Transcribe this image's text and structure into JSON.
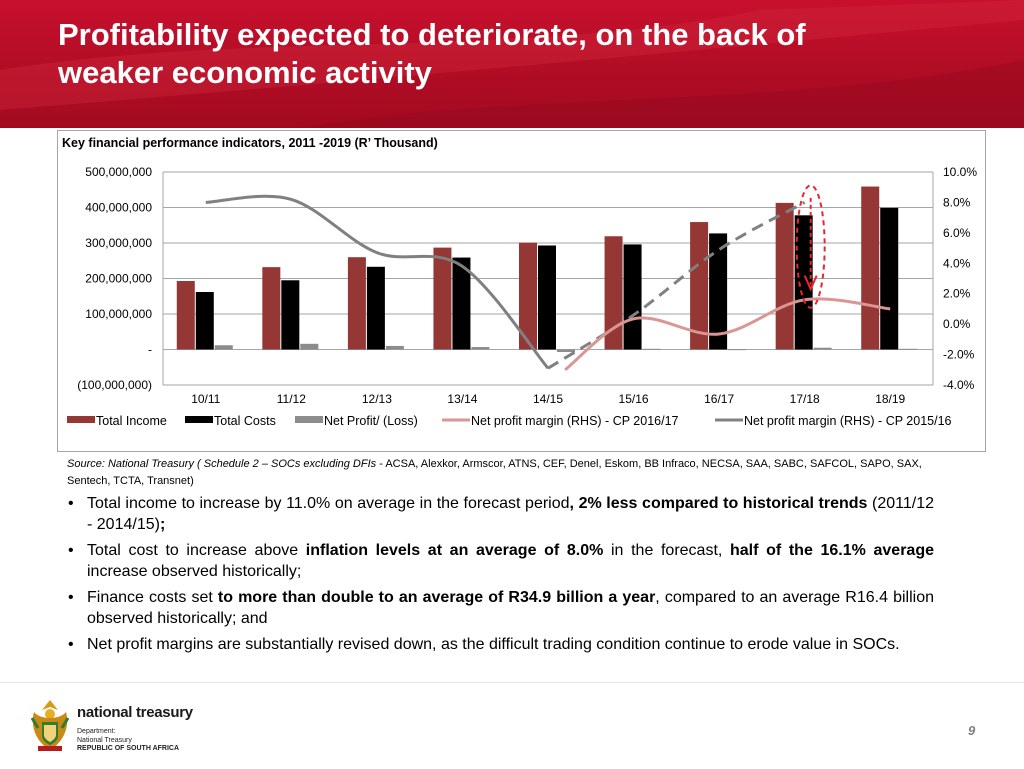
{
  "header": {
    "title_line1": "Profitability expected to deteriorate, on the back of",
    "title_line2": "weaker economic activity"
  },
  "colors": {
    "brand_red": "#c8102e",
    "total_income": "#953735",
    "total_costs": "#000000",
    "net_profit": "#8c8c8c",
    "cp_2016_17": "#d99694",
    "cp_2015_16": "#808080",
    "annotation": "#e8262d"
  },
  "chart_data": {
    "type": "bar",
    "title": "Key financial performance indicators, 2011 -2019 (R’ Thousand)",
    "categories": [
      "10/11",
      "11/12",
      "12/13",
      "13/14",
      "14/15",
      "15/16",
      "16/17",
      "17/18",
      "18/19"
    ],
    "left_axis": {
      "ylim": [
        -100000000,
        500000000
      ],
      "ticks": [
        500000000,
        400000000,
        300000000,
        200000000,
        100000000,
        0,
        -100000000
      ],
      "tick_labels": [
        "500,000,000",
        "400,000,000",
        "300,000,000",
        "200,000,000",
        "100,000,000",
        "-",
        "(100,000,000)"
      ]
    },
    "right_axis": {
      "ylim": [
        -4.0,
        10.0
      ],
      "ticks": [
        10,
        8,
        6,
        4,
        2,
        0,
        -2,
        -4
      ],
      "tick_labels": [
        "10.0%",
        "8.0%",
        "6.0%",
        "4.0%",
        "2.0%",
        "0.0%",
        "-2.0%",
        "-4.0%"
      ]
    },
    "series": [
      {
        "name": "Total Income",
        "type": "bar",
        "axis": "left",
        "values": [
          193000000,
          232000000,
          260000000,
          287000000,
          301000000,
          319000000,
          359000000,
          413000000,
          459000000
        ]
      },
      {
        "name": "Total Costs",
        "type": "bar",
        "axis": "left",
        "values": [
          162000000,
          195000000,
          233000000,
          259000000,
          293000000,
          296000000,
          327000000,
          378000000,
          399000000
        ]
      },
      {
        "name": "Net Profit/ (Loss)",
        "type": "bar",
        "axis": "left",
        "values": [
          12000000,
          16000000,
          10000000,
          7000000,
          -7000000,
          2000000,
          1000000,
          5000000,
          2000000
        ]
      },
      {
        "name": "Net profit margin (RHS) - CP 2016/17",
        "type": "line",
        "axis": "right",
        "x": [
          5.2,
          6,
          7,
          8,
          9
        ],
        "values": [
          -3.0,
          0.35,
          -0.65,
          1.6,
          1.0
        ]
      },
      {
        "name": "Net profit margin (RHS) - CP 2015/16",
        "type": "line",
        "axis": "right",
        "x": [
          1,
          2,
          3,
          4,
          5,
          6,
          7,
          8
        ],
        "values": [
          8.0,
          8.2,
          4.7,
          3.8,
          -2.9,
          0.6,
          4.9,
          8.0
        ]
      }
    ],
    "legend_position": "bottom"
  },
  "source": {
    "lead": "Source: National Treasury ( Schedule 2 – SOCs excluding DFIs",
    "rest": "- ACSA, Alexkor, Armscor, ATNS, CEF, Denel, Eskom, BB Infraco, NECSA, SAA, SABC, SAFCOL, SAPO, SAX, Sentech, TCTA, Transnet)"
  },
  "bullets": [
    {
      "p1": "Total income to increase by 11.0% on average in the forecast period",
      "b1": ", 2% less compared to historical trends",
      "p2": " (2011/12 - 2014/15)",
      "b2": ";",
      "p3": ""
    },
    {
      "p1": "Total cost to increase above ",
      "b1": "inflation levels at an average of 8.0%",
      "p2": " in the forecast, ",
      "b2": "half of the 16.1% average",
      "p3": " increase observed historically;"
    },
    {
      "p1": "Finance costs set ",
      "b1": "to more than double to an average of R34.9 billion a year",
      "p2": ", compared to an average R16.4 billion observed historically; and",
      "b2": "",
      "p3": ""
    },
    {
      "p1": "Net profit margins are substantially revised down, as the difficult trading condition continue to erode value in SOCs.",
      "b1": "",
      "p2": "",
      "b2": "",
      "p3": ""
    }
  ],
  "footer": {
    "logo_name": "national treasury",
    "dept_line1": "Department:",
    "dept_line2": "National Treasury",
    "dept_line3": "REPUBLIC OF SOUTH AFRICA",
    "page_number": "9"
  }
}
